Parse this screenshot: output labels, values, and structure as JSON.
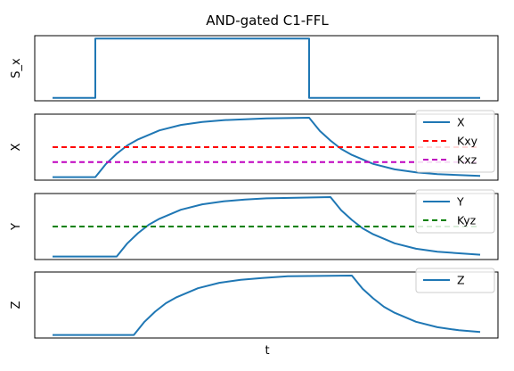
{
  "chart_data": {
    "type": "line",
    "title": "AND-gated C1-FFL",
    "xlabel": "t",
    "xlim": [
      0,
      10
    ],
    "colors": {
      "signal": "#1f77b4",
      "Kxy": "#ff0000",
      "Kxz": "#bf00bf",
      "Kyz": "#008000"
    },
    "panels": [
      {
        "ylabel": "S_x",
        "ylim": [
          -0.05,
          1.05
        ],
        "series": [
          {
            "name": "",
            "style": "solid",
            "color": "#1f77b4",
            "x": [
              0,
              1,
              1,
              6,
              6,
              10
            ],
            "y": [
              0,
              0,
              1,
              1,
              0,
              0
            ]
          }
        ]
      },
      {
        "ylabel": "X",
        "ylim": [
          -0.05,
          1.05
        ],
        "legend": "top-right",
        "series": [
          {
            "name": "X",
            "style": "solid",
            "color": "#1f77b4",
            "x": [
              0,
              1,
              1.25,
              1.5,
              1.75,
              2,
              2.5,
              3,
              3.5,
              4,
              5,
              6,
              6.25,
              6.5,
              6.75,
              7,
              7.5,
              8,
              8.5,
              9,
              10
            ],
            "y": [
              0,
              0,
              0.22,
              0.39,
              0.53,
              0.63,
              0.78,
              0.87,
              0.92,
              0.95,
              0.98,
              0.99,
              0.77,
              0.61,
              0.47,
              0.37,
              0.22,
              0.13,
              0.08,
              0.05,
              0.02
            ]
          },
          {
            "name": "Kxy",
            "style": "dashed",
            "color": "#ff0000",
            "x": [
              0,
              10
            ],
            "y": [
              0.5,
              0.5
            ]
          },
          {
            "name": "Kxz",
            "style": "dashed",
            "color": "#bf00bf",
            "x": [
              0,
              10
            ],
            "y": [
              0.25,
              0.25
            ]
          }
        ]
      },
      {
        "ylabel": "Y",
        "ylim": [
          -0.05,
          1.05
        ],
        "legend": "top-right",
        "series": [
          {
            "name": "Y",
            "style": "solid",
            "color": "#1f77b4",
            "x": [
              0,
              1.5,
              1.75,
              2,
              2.25,
              2.5,
              3,
              3.5,
              4,
              4.5,
              5,
              6.5,
              6.75,
              7,
              7.25,
              7.5,
              8,
              8.5,
              9,
              10
            ],
            "y": [
              0,
              0,
              0.22,
              0.39,
              0.53,
              0.63,
              0.78,
              0.87,
              0.92,
              0.95,
              0.97,
              0.99,
              0.77,
              0.61,
              0.47,
              0.37,
              0.22,
              0.13,
              0.08,
              0.03
            ]
          },
          {
            "name": "Kyz",
            "style": "dashed",
            "color": "#008000",
            "x": [
              0,
              10
            ],
            "y": [
              0.5,
              0.5
            ]
          }
        ]
      },
      {
        "ylabel": "Z",
        "ylim": [
          -0.05,
          1.05
        ],
        "legend": "top-right",
        "series": [
          {
            "name": "Z",
            "style": "solid",
            "color": "#1f77b4",
            "x": [
              0,
              1.9,
              2.15,
              2.4,
              2.65,
              2.9,
              3.4,
              3.9,
              4.4,
              4.9,
              5.5,
              7,
              7.25,
              7.5,
              7.75,
              8,
              8.5,
              9,
              9.5,
              10
            ],
            "y": [
              0,
              0,
              0.22,
              0.39,
              0.53,
              0.63,
              0.78,
              0.87,
              0.92,
              0.95,
              0.98,
              0.99,
              0.77,
              0.61,
              0.47,
              0.37,
              0.22,
              0.13,
              0.08,
              0.05
            ]
          }
        ]
      }
    ]
  }
}
